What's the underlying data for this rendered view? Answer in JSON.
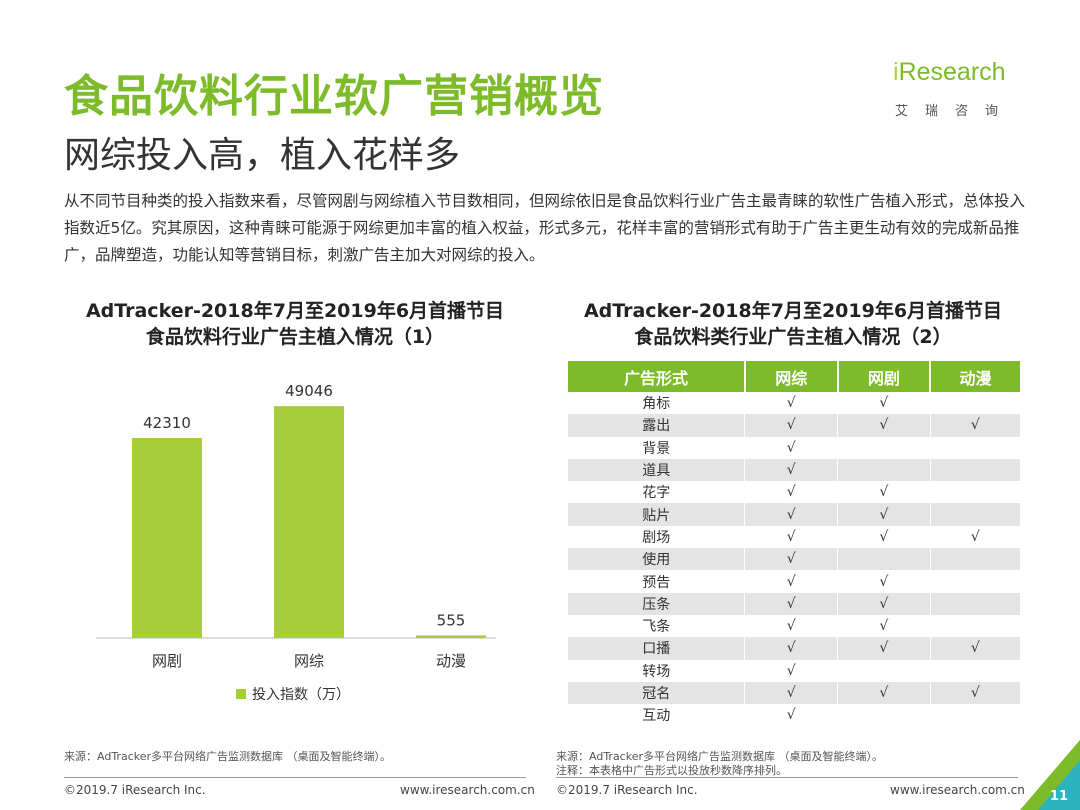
{
  "header": {
    "title": "食品饮料行业软广营销概览",
    "subtitle": "网综投入高，植入花样多"
  },
  "logo": {
    "word_prefix": "i",
    "word_main": "Research",
    "sub": "艾瑞咨询"
  },
  "paragraph": "从不同节目种类的投入指数来看，尽管网剧与网综植入节目数相同，但网综依旧是食品饮料行业广告主最青睐的软性广告植入形式，总体投入指数近5亿。究其原因，这种青睐可能源于网综更加丰富的植入权益，形式多元，花样丰富的营销形式有助于广告主更生动有效的完成新品推广，品牌塑造，功能认知等营销目标，刺激广告主加大对网综的投入。",
  "left": {
    "title_line1": "AdTracker-2018年7月至2019年6月首播节目",
    "title_line2": "食品饮料行业广告主植入情况（1）"
  },
  "chart_data": {
    "type": "bar",
    "categories": [
      "网剧",
      "网综",
      "动漫"
    ],
    "series": [
      {
        "name": "投入指数（万）",
        "values": [
          42310,
          49046,
          555
        ]
      }
    ],
    "ylim": [
      0,
      55000
    ],
    "color": "#a6ce39",
    "legend": "bottom"
  },
  "right": {
    "title_line1": "AdTracker-2018年7月至2019年6月首播节目",
    "title_line2": "食品饮料类行业广告主植入情况（2）"
  },
  "table": {
    "headers": [
      "广告形式",
      "网综",
      "网剧",
      "动漫"
    ],
    "rows": [
      [
        "角标",
        "√",
        "√",
        ""
      ],
      [
        "露出",
        "√",
        "√",
        "√"
      ],
      [
        "背景",
        "√",
        "",
        ""
      ],
      [
        "道具",
        "√",
        "",
        ""
      ],
      [
        "花字",
        "√",
        "√",
        ""
      ],
      [
        "贴片",
        "√",
        "√",
        ""
      ],
      [
        "剧场",
        "√",
        "√",
        "√"
      ],
      [
        "使用",
        "√",
        "",
        ""
      ],
      [
        "预告",
        "√",
        "√",
        ""
      ],
      [
        "压条",
        "√",
        "√",
        ""
      ],
      [
        "飞条",
        "√",
        "√",
        ""
      ],
      [
        "口播",
        "√",
        "√",
        "√"
      ],
      [
        "转场",
        "√",
        "",
        ""
      ],
      [
        "冠名",
        "√",
        "√",
        "√"
      ],
      [
        "互动",
        "√",
        "",
        ""
      ]
    ]
  },
  "footer": {
    "source_left": "来源：AdTracker多平台网络广告监测数据库 （桌面及智能终端）。",
    "source_right": "来源：AdTracker多平台网络广告监测数据库 （桌面及智能终端）。",
    "note_right": "注释：本表格中广告形式以投放秒数降序排列。",
    "copyright_left": "©2019.7 iResearch Inc.",
    "url_left": "www.iresearch.com.cn",
    "copyright_right": "©2019.7 iResearch Inc.",
    "url_right": "www.iresearch.com.cn",
    "page": "11"
  }
}
